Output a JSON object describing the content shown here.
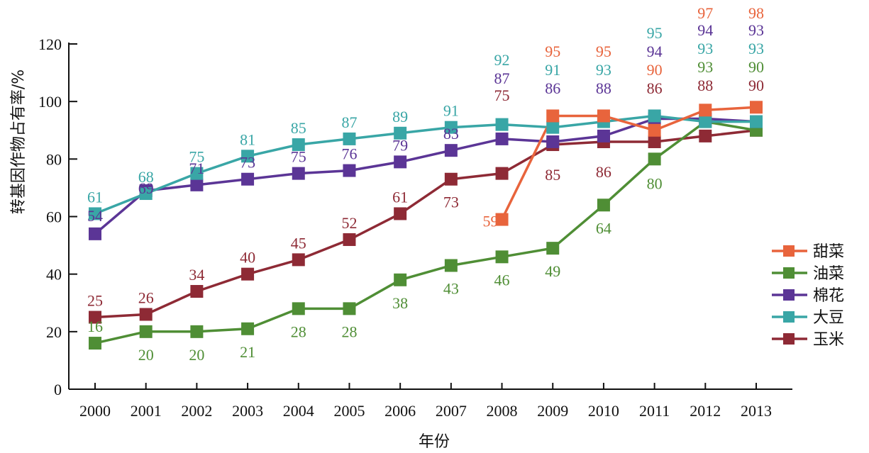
{
  "chart_data": {
    "type": "line",
    "xlabel": "年份",
    "ylabel": "转基因作物占有率/%",
    "x": [
      "2000",
      "2001",
      "2002",
      "2003",
      "2004",
      "2005",
      "2006",
      "2007",
      "2008",
      "2009",
      "2010",
      "2011",
      "2012",
      "2013"
    ],
    "yticks": [
      "0",
      "20",
      "40",
      "60",
      "80",
      "100",
      "120"
    ],
    "ylim": [
      0,
      120
    ],
    "grid": false,
    "legend_position": "right",
    "series": [
      {
        "name": "甜菜",
        "color": "#e8643c",
        "values": [
          null,
          null,
          null,
          null,
          null,
          null,
          null,
          null,
          59,
          95,
          95,
          90,
          97,
          98
        ],
        "labels": [
          null,
          null,
          null,
          null,
          null,
          null,
          null,
          null,
          "59",
          "95",
          "95",
          "90",
          "97",
          "98"
        ]
      },
      {
        "name": "油菜",
        "color": "#4f8e35",
        "values": [
          16,
          20,
          20,
          21,
          28,
          28,
          38,
          43,
          46,
          49,
          64,
          80,
          93,
          90
        ],
        "labels": [
          "16",
          "20",
          "20",
          "21",
          "28",
          "28",
          "38",
          "43",
          "46",
          "49",
          "64",
          "80",
          "93",
          "90"
        ]
      },
      {
        "name": "棉花",
        "color": "#5b3596",
        "values": [
          54,
          69,
          71,
          73,
          75,
          76,
          79,
          83,
          87,
          86,
          88,
          94,
          94,
          93
        ],
        "labels": [
          "54",
          "69",
          "71",
          "73",
          "75",
          "76",
          "79",
          "83",
          "87",
          "86",
          "88",
          "94",
          "94",
          "93"
        ]
      },
      {
        "name": "大豆",
        "color": "#39a6a6",
        "values": [
          61,
          68,
          75,
          81,
          85,
          87,
          89,
          91,
          92,
          91,
          93,
          95,
          93,
          93
        ],
        "labels": [
          "61",
          "68",
          "75",
          "81",
          "85",
          "87",
          "89",
          "91",
          "92",
          "91",
          "93",
          "95",
          "93",
          "93"
        ]
      },
      {
        "name": "玉米",
        "color": "#8e2a35",
        "values": [
          25,
          26,
          34,
          40,
          45,
          52,
          61,
          73,
          75,
          85,
          86,
          86,
          88,
          90
        ],
        "labels": [
          "25",
          "26",
          "34",
          "40",
          "45",
          "52",
          "61",
          "73",
          "75",
          "85",
          "86",
          "86",
          "88",
          "90"
        ]
      }
    ]
  }
}
